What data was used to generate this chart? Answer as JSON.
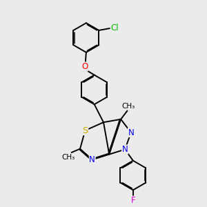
{
  "bg_color": "#ebebeb",
  "bond_color": "#000000",
  "bond_lw": 1.4,
  "dbo": 0.055,
  "atom_colors": {
    "N": "#0000ee",
    "S": "#ccaa00",
    "O": "#ff0000",
    "Cl": "#00bb00",
    "F": "#dd00dd",
    "C": "#000000"
  },
  "afs": 8.5
}
